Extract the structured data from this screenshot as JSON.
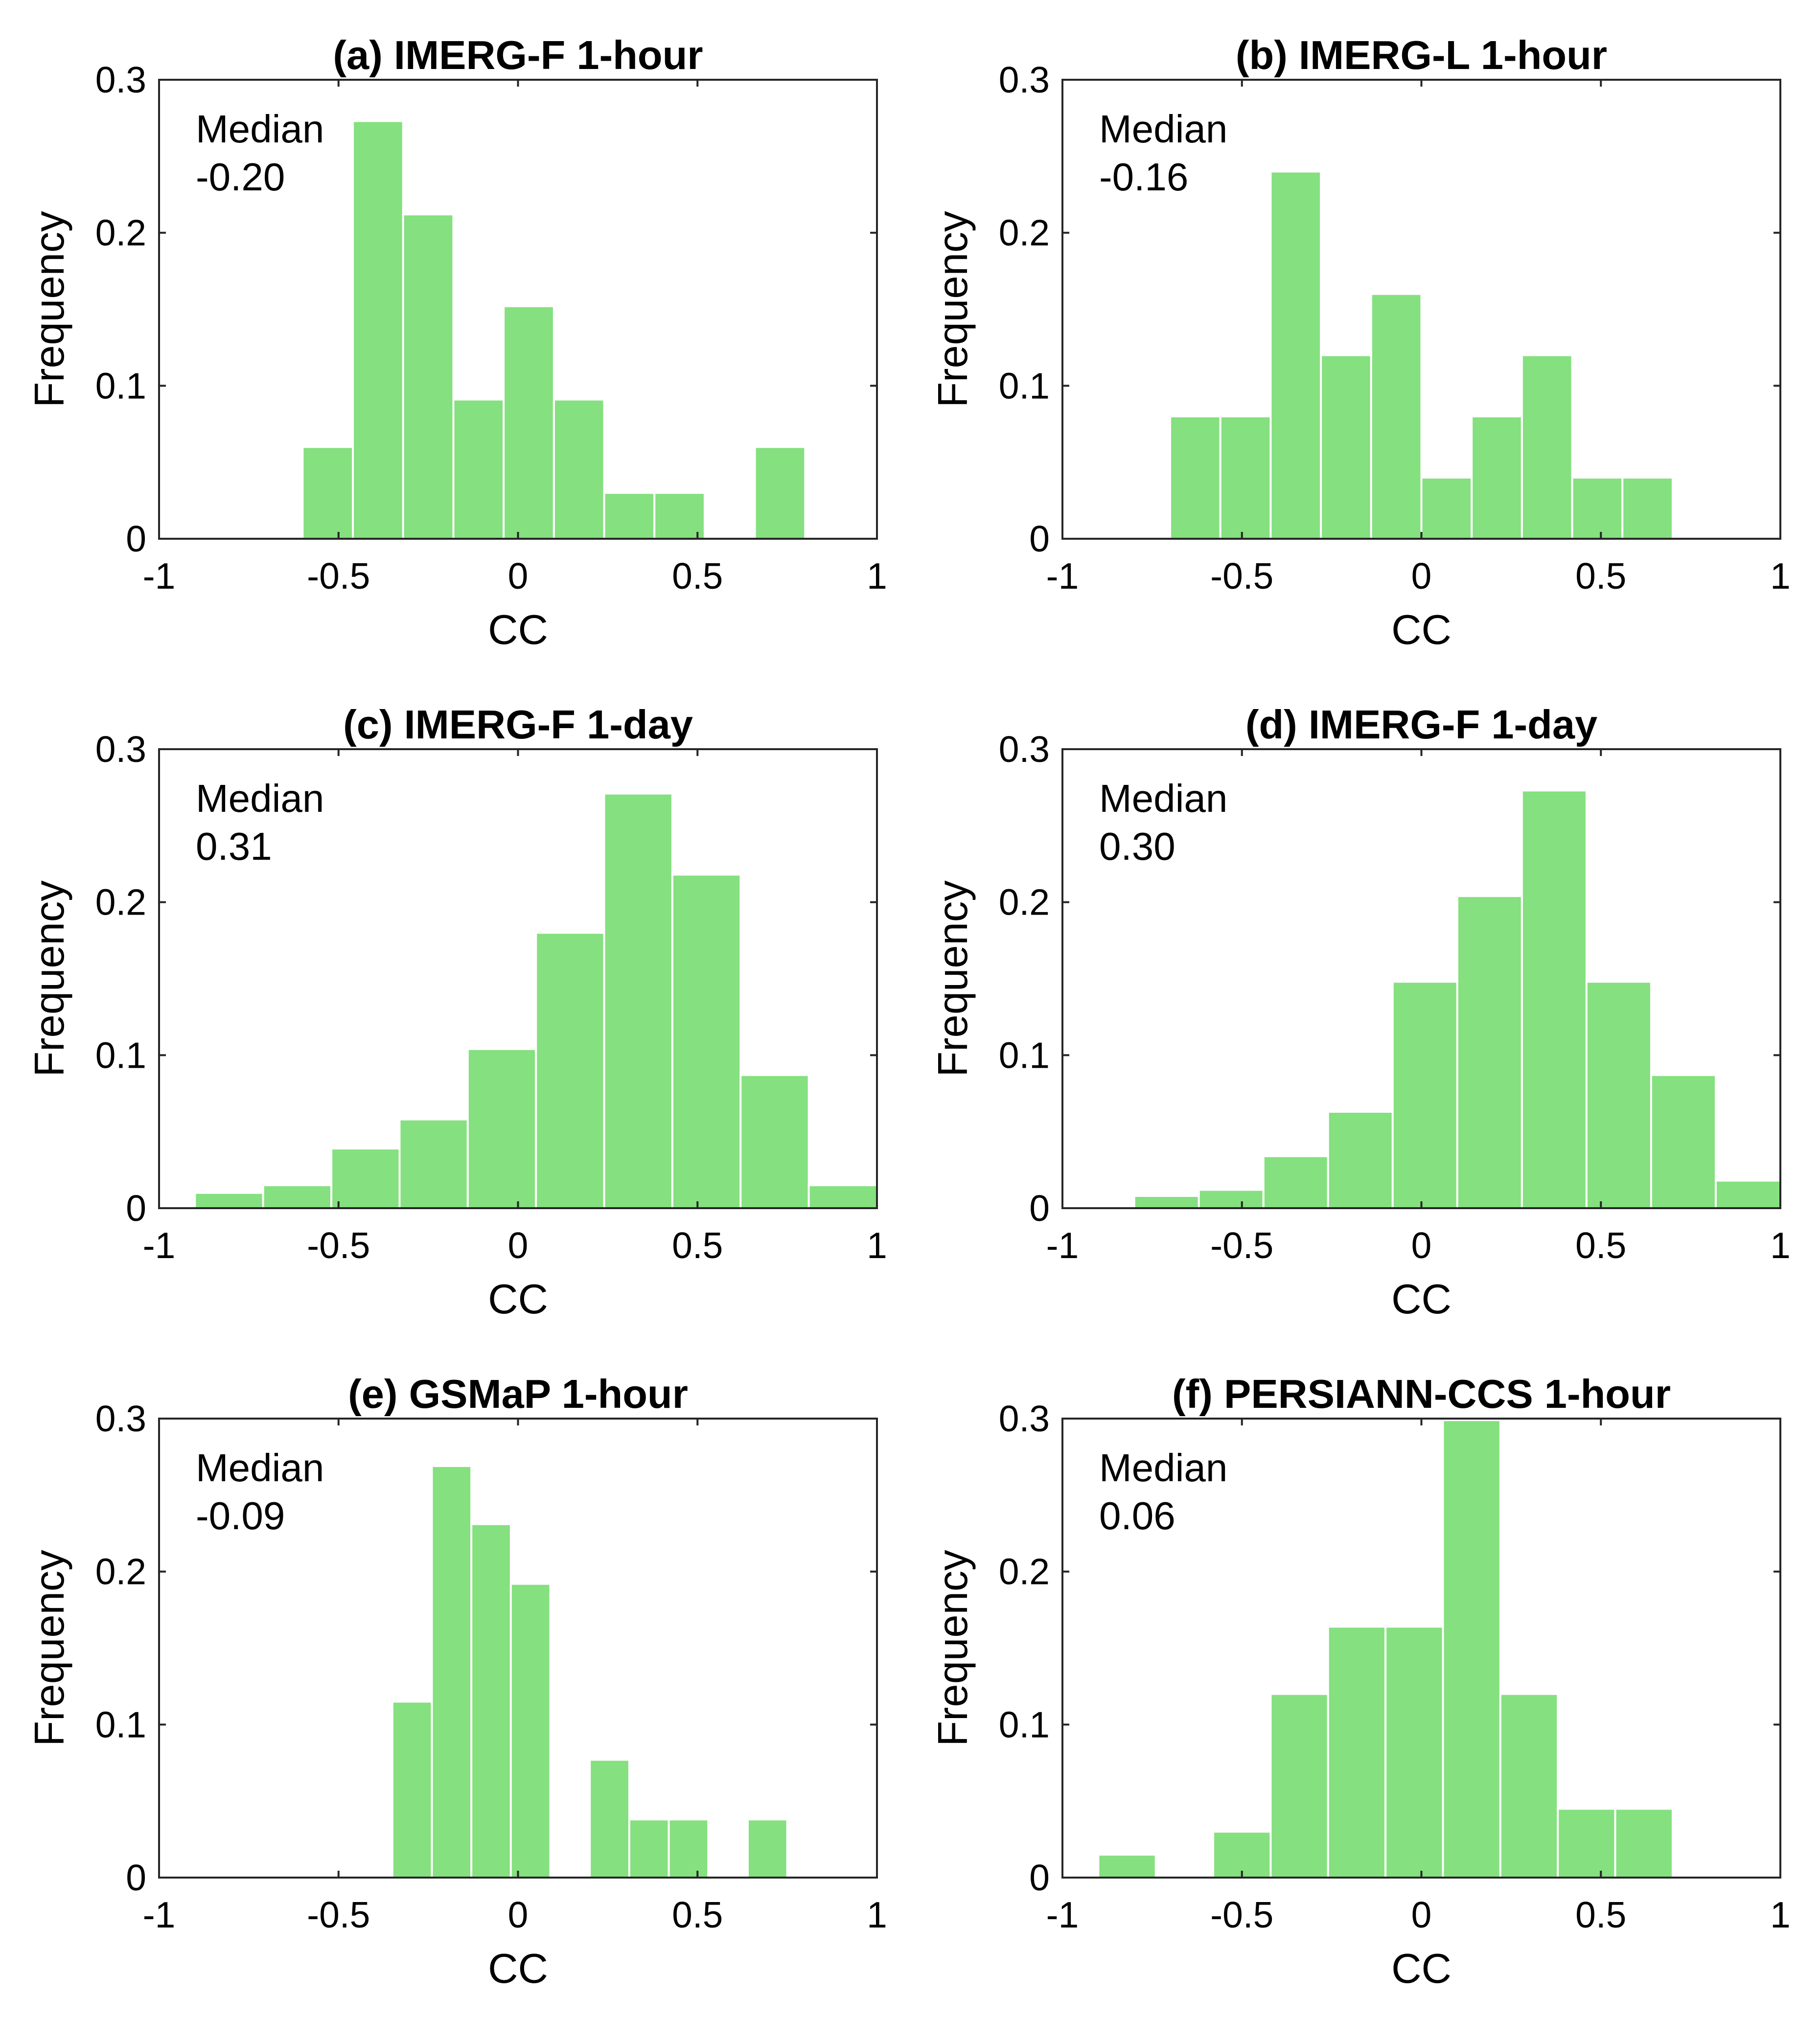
{
  "chart_data": [
    {
      "type": "bar",
      "title": "(a) IMERG-F 1-hour",
      "xlabel": "CC",
      "ylabel": "Frequency",
      "xlim": [
        -1,
        1
      ],
      "ylim": [
        0,
        0.3
      ],
      "xticks": [
        "-1",
        "-0.5",
        "0",
        "0.5",
        "1"
      ],
      "yticks": [
        "0",
        "0.1",
        "0.2",
        "0.3"
      ],
      "bar_color": "#85e07f",
      "annotation": [
        "Median",
        "-0.20"
      ],
      "bins": [
        {
          "x0": -0.6,
          "x1": -0.46,
          "y": 0.06
        },
        {
          "x0": -0.46,
          "x1": -0.32,
          "y": 0.273
        },
        {
          "x0": -0.32,
          "x1": -0.18,
          "y": 0.212
        },
        {
          "x0": -0.18,
          "x1": -0.04,
          "y": 0.091
        },
        {
          "x0": -0.04,
          "x1": 0.1,
          "y": 0.152
        },
        {
          "x0": 0.1,
          "x1": 0.24,
          "y": 0.091
        },
        {
          "x0": 0.24,
          "x1": 0.38,
          "y": 0.03
        },
        {
          "x0": 0.38,
          "x1": 0.52,
          "y": 0.03
        },
        {
          "x0": 0.66,
          "x1": 0.8,
          "y": 0.06
        }
      ]
    },
    {
      "type": "bar",
      "title": "(b) IMERG-L 1-hour",
      "xlabel": "CC",
      "ylabel": "Frequency",
      "xlim": [
        -1,
        1
      ],
      "ylim": [
        0,
        0.3
      ],
      "xticks": [
        "-1",
        "-0.5",
        "0",
        "0.5",
        "1"
      ],
      "yticks": [
        "0",
        "0.1",
        "0.2",
        "0.3"
      ],
      "bar_color": "#85e07f",
      "annotation": [
        "Median",
        "-0.16"
      ],
      "bins": [
        {
          "x0": -0.7,
          "x1": -0.56,
          "y": 0.08
        },
        {
          "x0": -0.56,
          "x1": -0.42,
          "y": 0.08
        },
        {
          "x0": -0.42,
          "x1": -0.28,
          "y": 0.24
        },
        {
          "x0": -0.28,
          "x1": -0.14,
          "y": 0.12
        },
        {
          "x0": -0.14,
          "x1": 0.0,
          "y": 0.16
        },
        {
          "x0": 0.0,
          "x1": 0.14,
          "y": 0.04
        },
        {
          "x0": 0.14,
          "x1": 0.28,
          "y": 0.08
        },
        {
          "x0": 0.28,
          "x1": 0.42,
          "y": 0.12
        },
        {
          "x0": 0.42,
          "x1": 0.56,
          "y": 0.04
        },
        {
          "x0": 0.56,
          "x1": 0.7,
          "y": 0.04
        }
      ]
    },
    {
      "type": "bar",
      "title": "(c) IMERG-F 1-day",
      "xlabel": "CC",
      "ylabel": "Frequency",
      "xlim": [
        -1,
        1
      ],
      "ylim": [
        0,
        0.3
      ],
      "xticks": [
        "-1",
        "-0.5",
        "0",
        "0.5",
        "1"
      ],
      "yticks": [
        "0",
        "0.1",
        "0.2",
        "0.3"
      ],
      "bar_color": "#85e07f",
      "annotation": [
        "Median",
        "0.31"
      ],
      "bins": [
        {
          "x0": -0.9,
          "x1": -0.71,
          "y": 0.01
        },
        {
          "x0": -0.71,
          "x1": -0.52,
          "y": 0.015
        },
        {
          "x0": -0.52,
          "x1": -0.33,
          "y": 0.039
        },
        {
          "x0": -0.33,
          "x1": -0.14,
          "y": 0.058
        },
        {
          "x0": -0.14,
          "x1": 0.05,
          "y": 0.104
        },
        {
          "x0": 0.05,
          "x1": 0.24,
          "y": 0.18
        },
        {
          "x0": 0.24,
          "x1": 0.43,
          "y": 0.271
        },
        {
          "x0": 0.43,
          "x1": 0.62,
          "y": 0.218
        },
        {
          "x0": 0.62,
          "x1": 0.81,
          "y": 0.087
        },
        {
          "x0": 0.81,
          "x1": 1.0,
          "y": 0.015
        }
      ]
    },
    {
      "type": "bar",
      "title": "(d) IMERG-F 1-day",
      "xlabel": "CC",
      "ylabel": "Frequency",
      "xlim": [
        -1,
        1
      ],
      "ylim": [
        0,
        0.3
      ],
      "xticks": [
        "-1",
        "-0.5",
        "0",
        "0.5",
        "1"
      ],
      "yticks": [
        "0",
        "0.1",
        "0.2",
        "0.3"
      ],
      "bar_color": "#85e07f",
      "annotation": [
        "Median",
        "0.30"
      ],
      "bins": [
        {
          "x0": -0.8,
          "x1": -0.62,
          "y": 0.008
        },
        {
          "x0": -0.62,
          "x1": -0.44,
          "y": 0.012
        },
        {
          "x0": -0.44,
          "x1": -0.26,
          "y": 0.034
        },
        {
          "x0": -0.26,
          "x1": -0.08,
          "y": 0.063
        },
        {
          "x0": -0.08,
          "x1": 0.1,
          "y": 0.148
        },
        {
          "x0": 0.1,
          "x1": 0.28,
          "y": 0.204
        },
        {
          "x0": 0.28,
          "x1": 0.46,
          "y": 0.273
        },
        {
          "x0": 0.46,
          "x1": 0.64,
          "y": 0.148
        },
        {
          "x0": 0.64,
          "x1": 0.82,
          "y": 0.087
        },
        {
          "x0": 0.82,
          "x1": 1.0,
          "y": 0.018
        }
      ]
    },
    {
      "type": "bar",
      "title": "(e) GSMaP 1-hour",
      "xlabel": "CC",
      "ylabel": "Frequency",
      "xlim": [
        -1,
        1
      ],
      "ylim": [
        0,
        0.3
      ],
      "xticks": [
        "-1",
        "-0.5",
        "0",
        "0.5",
        "1"
      ],
      "yticks": [
        "0",
        "0.1",
        "0.2",
        "0.3"
      ],
      "bar_color": "#85e07f",
      "annotation": [
        "Median",
        "-0.09"
      ],
      "bins": [
        {
          "x0": -0.35,
          "x1": -0.24,
          "y": 0.115
        },
        {
          "x0": -0.24,
          "x1": -0.13,
          "y": 0.269
        },
        {
          "x0": -0.13,
          "x1": -0.02,
          "y": 0.231
        },
        {
          "x0": -0.02,
          "x1": 0.09,
          "y": 0.192
        },
        {
          "x0": 0.2,
          "x1": 0.31,
          "y": 0.077
        },
        {
          "x0": 0.31,
          "x1": 0.42,
          "y": 0.038
        },
        {
          "x0": 0.42,
          "x1": 0.53,
          "y": 0.038
        },
        {
          "x0": 0.64,
          "x1": 0.75,
          "y": 0.038
        }
      ]
    },
    {
      "type": "bar",
      "title": "(f) PERSIANN-CCS 1-hour",
      "xlabel": "CC",
      "ylabel": "Frequency",
      "xlim": [
        -1,
        1
      ],
      "ylim": [
        0,
        0.3
      ],
      "xticks": [
        "-1",
        "-0.5",
        "0",
        "0.5",
        "1"
      ],
      "yticks": [
        "0",
        "0.1",
        "0.2",
        "0.3"
      ],
      "bar_color": "#85e07f",
      "annotation": [
        "Median",
        "0.06"
      ],
      "bins": [
        {
          "x0": -0.9,
          "x1": -0.74,
          "y": 0.015
        },
        {
          "x0": -0.58,
          "x1": -0.42,
          "y": 0.03
        },
        {
          "x0": -0.42,
          "x1": -0.26,
          "y": 0.12
        },
        {
          "x0": -0.26,
          "x1": -0.1,
          "y": 0.164
        },
        {
          "x0": -0.1,
          "x1": 0.06,
          "y": 0.164
        },
        {
          "x0": 0.06,
          "x1": 0.22,
          "y": 0.299
        },
        {
          "x0": 0.22,
          "x1": 0.38,
          "y": 0.12
        },
        {
          "x0": 0.38,
          "x1": 0.54,
          "y": 0.045
        },
        {
          "x0": 0.54,
          "x1": 0.7,
          "y": 0.045
        }
      ]
    }
  ]
}
